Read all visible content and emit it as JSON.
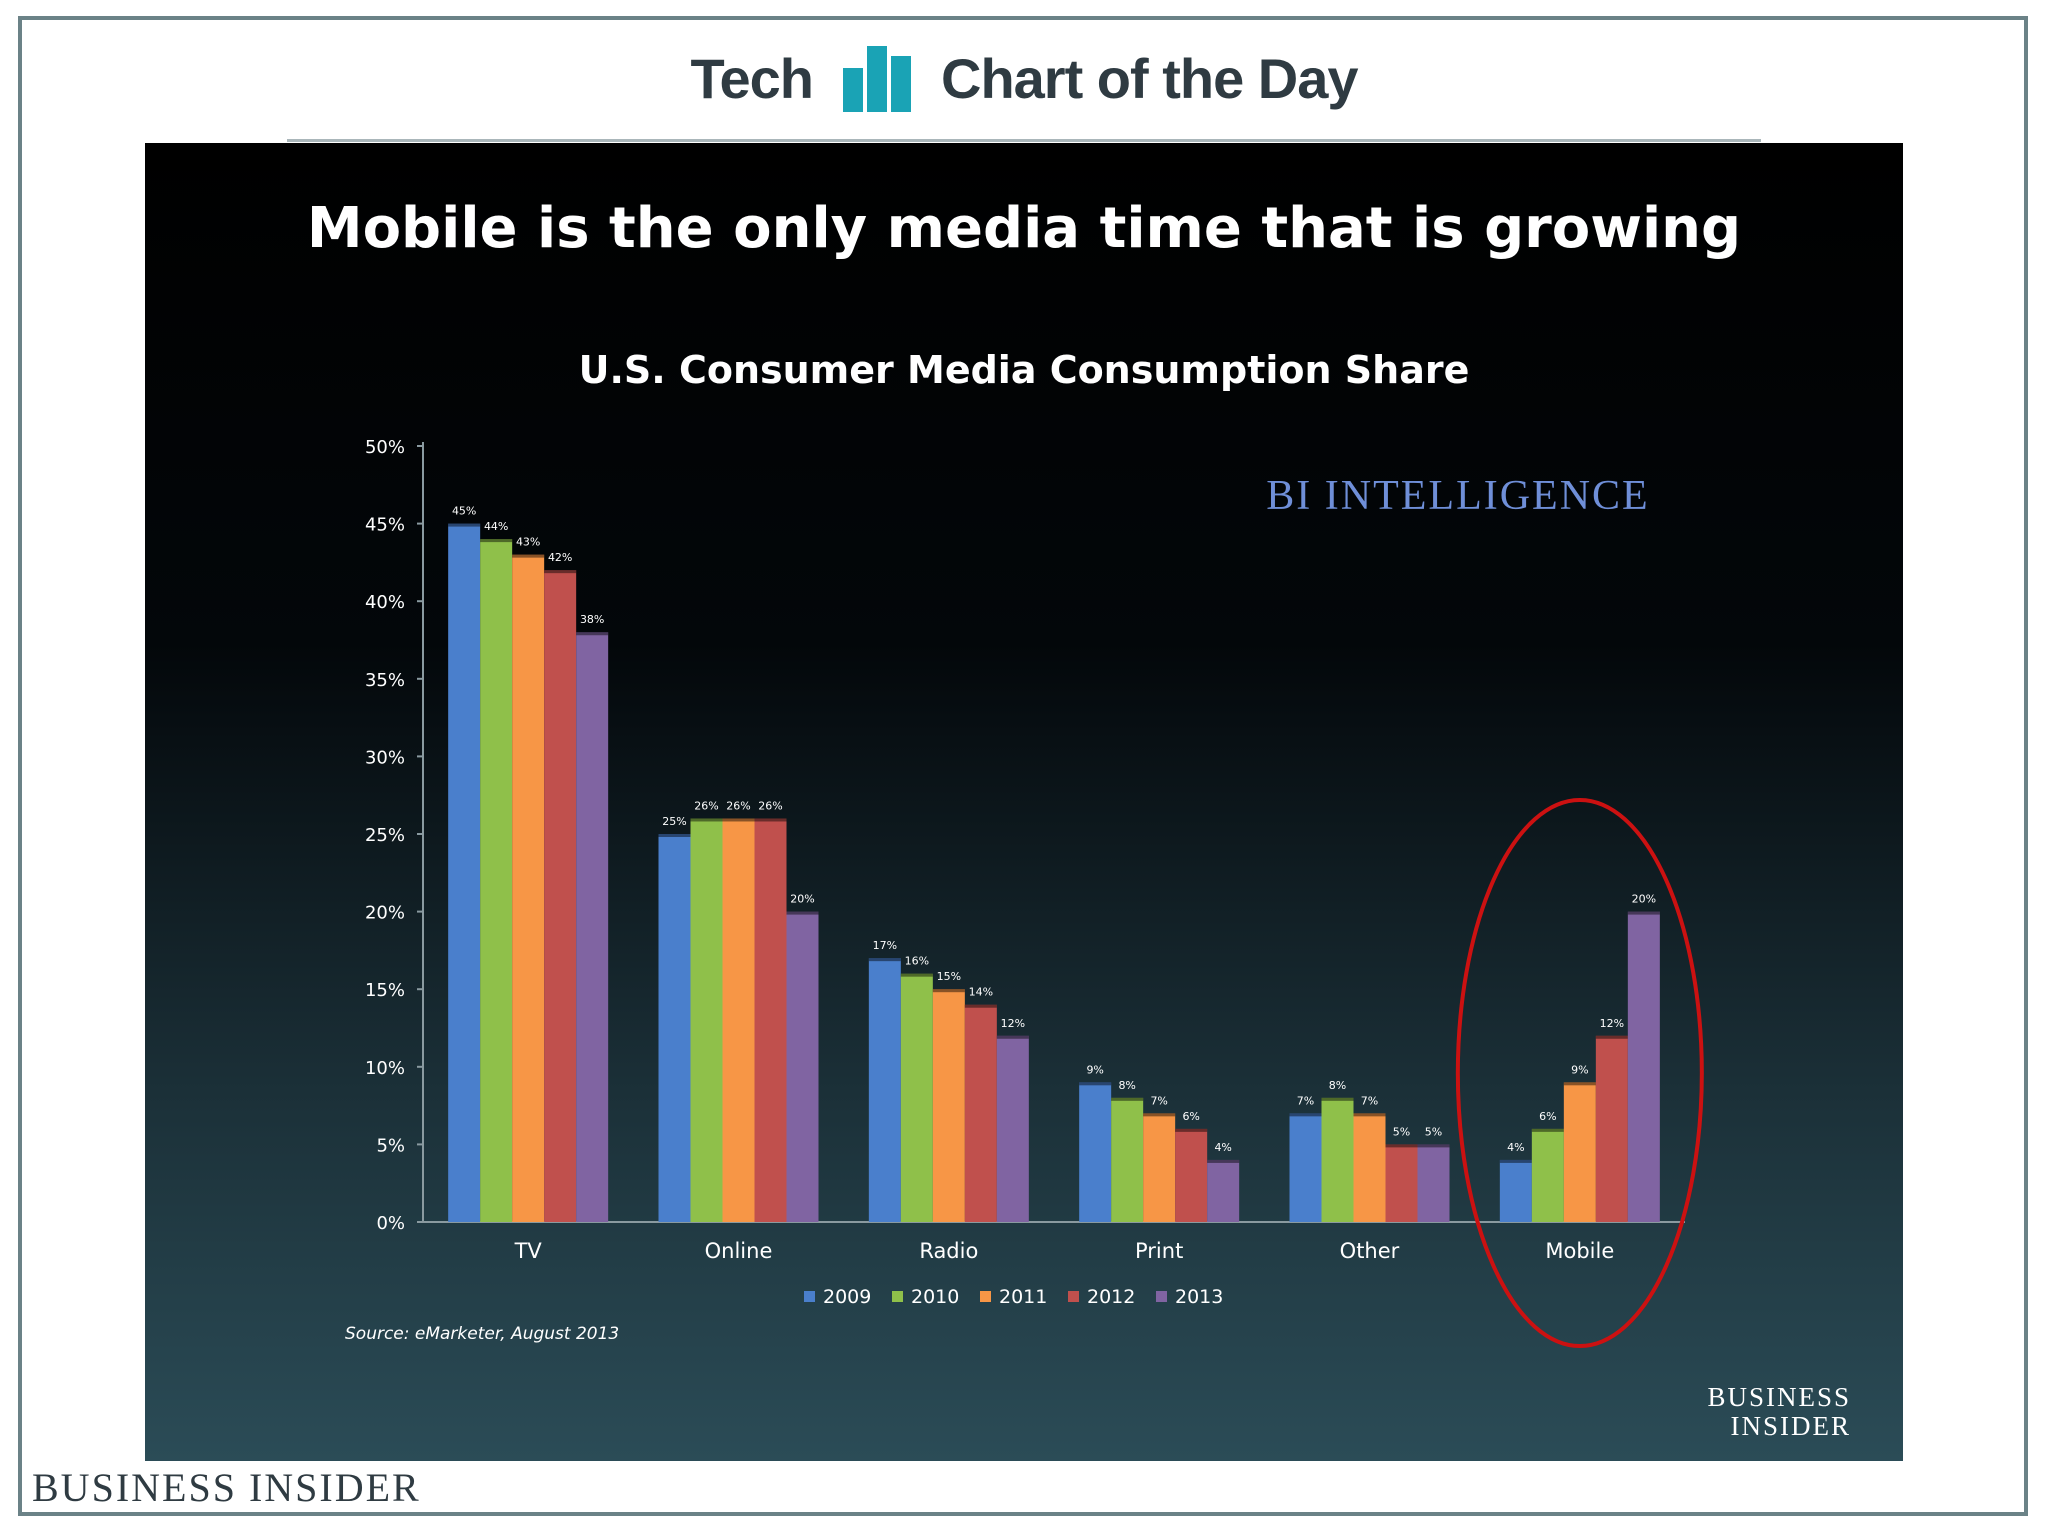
{
  "header": {
    "left_text": "Tech",
    "right_text": "Chart of the Day",
    "logo_icon": "bar-chart-logo-icon",
    "accent_color": "#1aa3b5"
  },
  "slide": {
    "headline": "Mobile is the only media time that is growing",
    "brand_watermark": "BI INTELLIGENCE",
    "source": "Source: eMarketer, August 2013",
    "corner_logo_line1": "BUSINESS",
    "corner_logo_line2": "INSIDER"
  },
  "footer": {
    "brand": "BUSINESS INSIDER"
  },
  "chart_data": {
    "type": "bar",
    "title": "U.S. Consumer Media Consumption Share",
    "categories": [
      "TV",
      "Online",
      "Radio",
      "Print",
      "Other",
      "Mobile"
    ],
    "yticks": [
      "0%",
      "5%",
      "10%",
      "15%",
      "20%",
      "25%",
      "30%",
      "35%",
      "40%",
      "45%",
      "50%"
    ],
    "ylim": [
      0,
      50
    ],
    "legend_position": "bottom",
    "grid": false,
    "highlight": {
      "category": "Mobile",
      "shape": "ellipse",
      "color": "#cc1111"
    },
    "series": [
      {
        "name": "2009",
        "color": "#4a7fcc",
        "values": [
          45,
          25,
          17,
          9,
          7,
          4
        ],
        "labels": [
          "45%",
          "25%",
          "17%",
          "9%",
          "7%",
          "4%"
        ]
      },
      {
        "name": "2010",
        "color": "#8fc04a",
        "values": [
          44,
          26,
          16,
          8,
          8,
          6
        ],
        "labels": [
          "44%",
          "26%",
          "16%",
          "8%",
          "8%",
          "6%"
        ]
      },
      {
        "name": "2011",
        "color": "#f79646",
        "values": [
          43,
          26,
          15,
          7,
          7,
          9
        ],
        "labels": [
          "43%",
          "26%",
          "15%",
          "7%",
          "7%",
          "9%"
        ]
      },
      {
        "name": "2012",
        "color": "#c0504d",
        "values": [
          42,
          26,
          14,
          6,
          5,
          12
        ],
        "labels": [
          "42%",
          "26%",
          "14%",
          "6%",
          "5%",
          "12%"
        ]
      },
      {
        "name": "2013",
        "color": "#8064a2",
        "values": [
          38,
          20,
          12,
          4,
          5,
          20
        ],
        "labels": [
          "38%",
          "20%",
          "12%",
          "4%",
          "5%",
          "20%"
        ]
      }
    ]
  }
}
